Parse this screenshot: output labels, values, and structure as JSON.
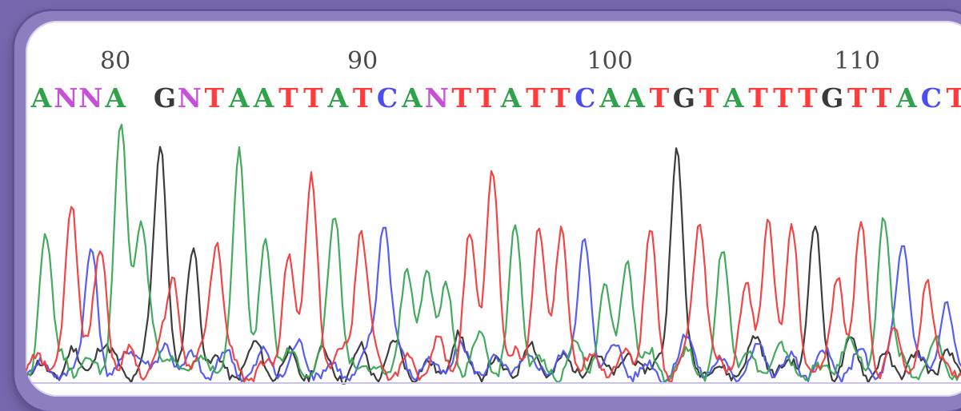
{
  "chart_data": {
    "type": "line",
    "positions": [
      {
        "label": "80",
        "base_index": 3
      },
      {
        "label": "90",
        "base_index": 13
      },
      {
        "label": "100",
        "base_index": 23
      },
      {
        "label": "110",
        "base_index": 33
      }
    ],
    "sequence": "ANNA GNTAATTATCANTTATTCAATGTATTTGTTACTC",
    "base_colors": {
      "A": "#2fa24a",
      "T": "#ff3b3b",
      "C": "#4a4ef0",
      "G": "#3a3a3a",
      "N": "#c84fd8"
    },
    "trace_colors": {
      "A": "#3aa655",
      "T": "#f03c3c",
      "C": "#4d55f2",
      "G": "#333333"
    },
    "ylim": [
      0,
      100
    ],
    "main_peaks": [
      {
        "base": "A",
        "x": 0.5,
        "h": 0.55
      },
      {
        "base": "T",
        "x": 1.3,
        "h": 0.68
      },
      {
        "base": "C",
        "x": 1.9,
        "h": 0.42
      },
      {
        "base": "A",
        "x": 2.8,
        "h": 0.95
      },
      {
        "base": "T",
        "x": 2.2,
        "h": 0.48
      },
      {
        "base": "A",
        "x": 3.4,
        "h": 0.6
      },
      {
        "base": "G",
        "x": 4.0,
        "h": 0.82
      },
      {
        "base": "T",
        "x": 4.4,
        "h": 0.38
      },
      {
        "base": "G",
        "x": 5.0,
        "h": 0.5
      },
      {
        "base": "T",
        "x": 5.7,
        "h": 0.52
      },
      {
        "base": "A",
        "x": 6.4,
        "h": 0.88
      },
      {
        "base": "A",
        "x": 7.2,
        "h": 0.52
      },
      {
        "base": "T",
        "x": 7.9,
        "h": 0.48
      },
      {
        "base": "T",
        "x": 8.6,
        "h": 0.78
      },
      {
        "base": "A",
        "x": 9.3,
        "h": 0.6
      },
      {
        "base": "T",
        "x": 10.1,
        "h": 0.56
      },
      {
        "base": "C",
        "x": 10.8,
        "h": 0.6
      },
      {
        "base": "A",
        "x": 11.5,
        "h": 0.4
      },
      {
        "base": "A",
        "x": 12.1,
        "h": 0.4
      },
      {
        "base": "A",
        "x": 12.7,
        "h": 0.35
      },
      {
        "base": "T",
        "x": 13.4,
        "h": 0.55
      },
      {
        "base": "T",
        "x": 14.1,
        "h": 0.82
      },
      {
        "base": "A",
        "x": 14.8,
        "h": 0.58
      },
      {
        "base": "T",
        "x": 15.5,
        "h": 0.58
      },
      {
        "base": "T",
        "x": 16.2,
        "h": 0.58
      },
      {
        "base": "C",
        "x": 16.9,
        "h": 0.55
      },
      {
        "base": "A",
        "x": 17.5,
        "h": 0.35
      },
      {
        "base": "A",
        "x": 18.2,
        "h": 0.45
      },
      {
        "base": "T",
        "x": 18.9,
        "h": 0.55
      },
      {
        "base": "G",
        "x": 19.7,
        "h": 0.85
      },
      {
        "base": "T",
        "x": 20.4,
        "h": 0.58
      },
      {
        "base": "A",
        "x": 21.1,
        "h": 0.48
      },
      {
        "base": "T",
        "x": 21.8,
        "h": 0.38
      },
      {
        "base": "T",
        "x": 22.5,
        "h": 0.6
      },
      {
        "base": "T",
        "x": 23.2,
        "h": 0.56
      },
      {
        "base": "G",
        "x": 23.9,
        "h": 0.58
      },
      {
        "base": "T",
        "x": 24.6,
        "h": 0.38
      },
      {
        "base": "T",
        "x": 25.3,
        "h": 0.58
      },
      {
        "base": "A",
        "x": 26.0,
        "h": 0.62
      },
      {
        "base": "C",
        "x": 26.6,
        "h": 0.5
      },
      {
        "base": "T",
        "x": 27.3,
        "h": 0.36
      },
      {
        "base": "C",
        "x": 27.9,
        "h": 0.3
      }
    ]
  }
}
